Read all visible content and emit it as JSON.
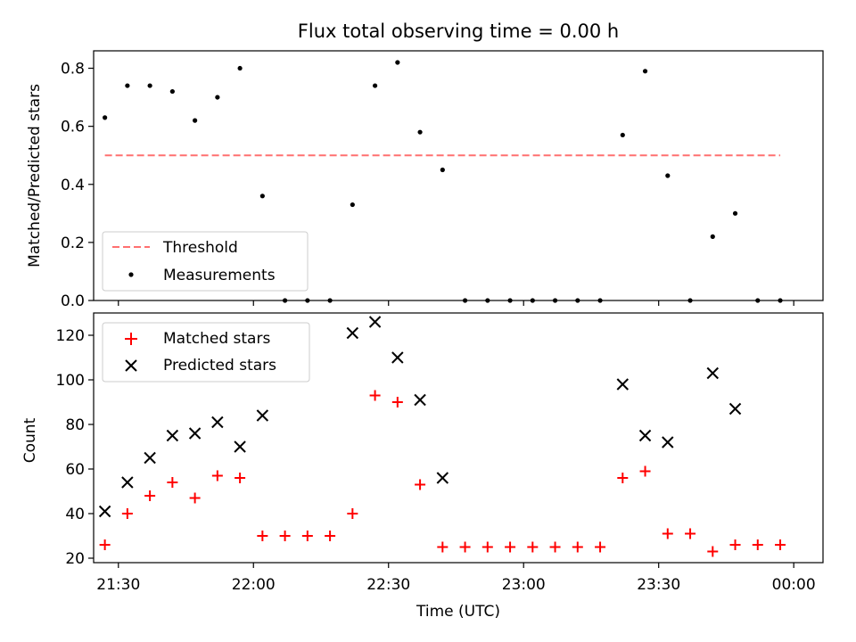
{
  "chart_data": [
    {
      "type": "scatter",
      "title": "Flux total observing time = 0.00 h",
      "xlabel": "",
      "ylabel": "Matched/Predicted stars",
      "ylim": [
        0,
        0.86
      ],
      "yticks": [
        "0.0",
        "0.2",
        "0.4",
        "0.6",
        "0.8"
      ],
      "ytick_values": [
        0,
        0.2,
        0.4,
        0.6,
        0.8
      ],
      "legend_position": "lower-left",
      "threshold": {
        "name": "Threshold",
        "value": 0.5,
        "x_start": "21:27",
        "x_end": "23:57",
        "color": "#ff7070"
      },
      "series": [
        {
          "name": "Measurements",
          "color": "#000000",
          "x": [
            "21:27",
            "21:32",
            "21:37",
            "21:42",
            "21:47",
            "21:52",
            "21:57",
            "22:02",
            "22:07",
            "22:12",
            "22:17",
            "22:22",
            "22:27",
            "22:32",
            "22:37",
            "22:42",
            "22:47",
            "22:52",
            "22:57",
            "23:02",
            "23:07",
            "23:12",
            "23:17",
            "23:22",
            "23:27",
            "23:32",
            "23:37",
            "23:42",
            "23:47",
            "23:52",
            "23:57"
          ],
          "y": [
            0.63,
            0.74,
            0.74,
            0.72,
            0.62,
            0.7,
            0.8,
            0.36,
            0.0,
            0.0,
            0.0,
            0.33,
            0.74,
            0.82,
            0.58,
            0.45,
            0.0,
            0.0,
            0.0,
            0.0,
            0.0,
            0.0,
            0.0,
            0.57,
            0.79,
            0.43,
            0.0,
            0.22,
            0.3,
            0.0,
            0.0
          ]
        }
      ]
    },
    {
      "type": "scatter",
      "title": "",
      "xlabel": "Time (UTC)",
      "ylabel": "Count",
      "ylim": [
        18,
        130
      ],
      "yticks": [
        "20",
        "40",
        "60",
        "80",
        "100",
        "120"
      ],
      "ytick_values": [
        20,
        40,
        60,
        80,
        100,
        120
      ],
      "xticks": [
        "21:30",
        "22:00",
        "22:30",
        "23:00",
        "23:30",
        "00:00"
      ],
      "xtick_values": [
        "21:30",
        "22:00",
        "22:30",
        "23:00",
        "23:30",
        "00:00"
      ],
      "legend_position": "upper-left",
      "series": [
        {
          "name": "Matched stars",
          "marker": "plus",
          "color": "#ff0000",
          "x": [
            "21:27",
            "21:32",
            "21:37",
            "21:42",
            "21:47",
            "21:52",
            "21:57",
            "22:02",
            "22:07",
            "22:12",
            "22:17",
            "22:22",
            "22:27",
            "22:32",
            "22:37",
            "22:42",
            "22:47",
            "22:52",
            "22:57",
            "23:02",
            "23:07",
            "23:12",
            "23:17",
            "23:22",
            "23:27",
            "23:32",
            "23:37",
            "23:42",
            "23:47",
            "23:52",
            "23:57"
          ],
          "y": [
            26,
            40,
            48,
            54,
            47,
            57,
            56,
            30,
            30,
            30,
            30,
            40,
            93,
            90,
            53,
            25,
            25,
            25,
            25,
            25,
            25,
            25,
            25,
            56,
            59,
            31,
            31,
            23,
            26,
            26,
            26
          ]
        },
        {
          "name": "Predicted stars",
          "marker": "x",
          "color": "#000000",
          "x": [
            "21:27",
            "21:32",
            "21:37",
            "21:42",
            "21:47",
            "21:52",
            "21:57",
            "22:02",
            "22:22",
            "22:27",
            "22:32",
            "22:37",
            "22:42",
            "23:22",
            "23:27",
            "23:32",
            "23:42",
            "23:47"
          ],
          "y": [
            41,
            54,
            65,
            75,
            76,
            81,
            70,
            84,
            121,
            126,
            110,
            91,
            56,
            98,
            75,
            72,
            103,
            87
          ]
        }
      ]
    }
  ]
}
